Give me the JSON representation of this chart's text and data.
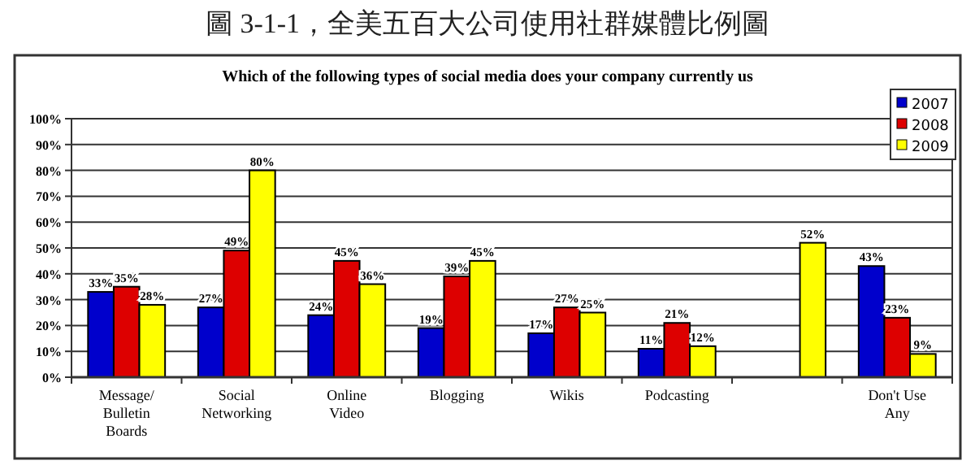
{
  "chart_data": {
    "type": "bar",
    "title": "圖 3-1-1，全美五百大公司使用社群媒體比例圖",
    "subtitle": "Which of the following types of social media does your company currently us",
    "categories": [
      "Message/ Bulletin Boards",
      "Social Networking",
      "Online Video",
      "Blogging",
      "Wikis",
      "Podcasting",
      null,
      "Don't Use Any"
    ],
    "series": [
      {
        "name": "2007",
        "color": "#0000cc",
        "values": [
          33,
          27,
          24,
          19,
          17,
          11,
          null,
          43
        ],
        "value_labels": [
          "33%",
          "27%",
          "24%",
          "19%",
          "17%",
          "11%",
          null,
          "43%"
        ]
      },
      {
        "name": "2008",
        "color": "#dd0000",
        "values": [
          35,
          49,
          45,
          39,
          27,
          21,
          null,
          23
        ],
        "value_labels": [
          "35%",
          "49%",
          "45%",
          "39%",
          "27%",
          "21%",
          null,
          "23%"
        ]
      },
      {
        "name": "2009",
        "color": "#ffff00",
        "values": [
          28,
          80,
          36,
          45,
          25,
          12,
          52,
          9
        ],
        "value_labels": [
          "28%",
          "80%",
          "36%",
          "45%",
          "25%",
          "12%",
          "52%",
          "9%"
        ]
      }
    ],
    "ylim": [
      0,
      100
    ],
    "yticks": [
      {
        "value": 0,
        "label": "0%"
      },
      {
        "value": 10,
        "label": "10%"
      },
      {
        "value": 20,
        "label": "20%"
      },
      {
        "value": 30,
        "label": "30%"
      },
      {
        "value": 40,
        "label": "40%"
      },
      {
        "value": 50,
        "label": "50%"
      },
      {
        "value": 60,
        "label": "60%"
      },
      {
        "value": 70,
        "label": "70%"
      },
      {
        "value": 80,
        "label": "80%"
      },
      {
        "value": 90,
        "label": "90%"
      },
      {
        "value": 100,
        "label": "100%"
      }
    ],
    "grid": "y",
    "legend": "top right"
  }
}
